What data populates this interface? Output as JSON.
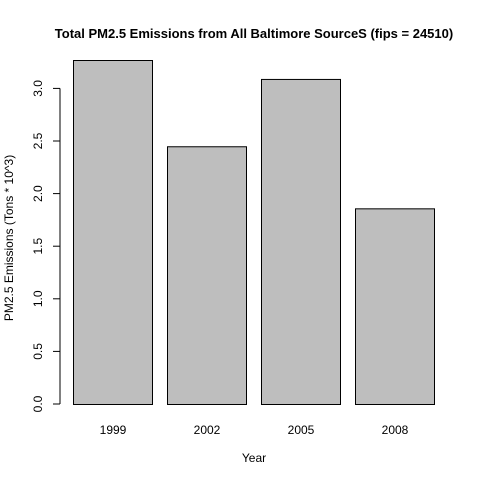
{
  "chart_data": {
    "type": "bar",
    "title": "Total PM2.5 Emissions from All Baltimore SourceS (fips = 24510)",
    "xlabel": "Year",
    "ylabel": "PM2.5 Emissions (Tons * 10^3)",
    "categories": [
      "1999",
      "2002",
      "2005",
      "2008"
    ],
    "values": [
      3.27,
      2.45,
      3.09,
      1.86
    ],
    "ylim": [
      0,
      3.27
    ],
    "yticks": [
      "0.0",
      "0.5",
      "1.0",
      "1.5",
      "2.0",
      "2.5",
      "3.0"
    ],
    "bar_color": "#bebebe",
    "grid": false,
    "legend": "none"
  }
}
